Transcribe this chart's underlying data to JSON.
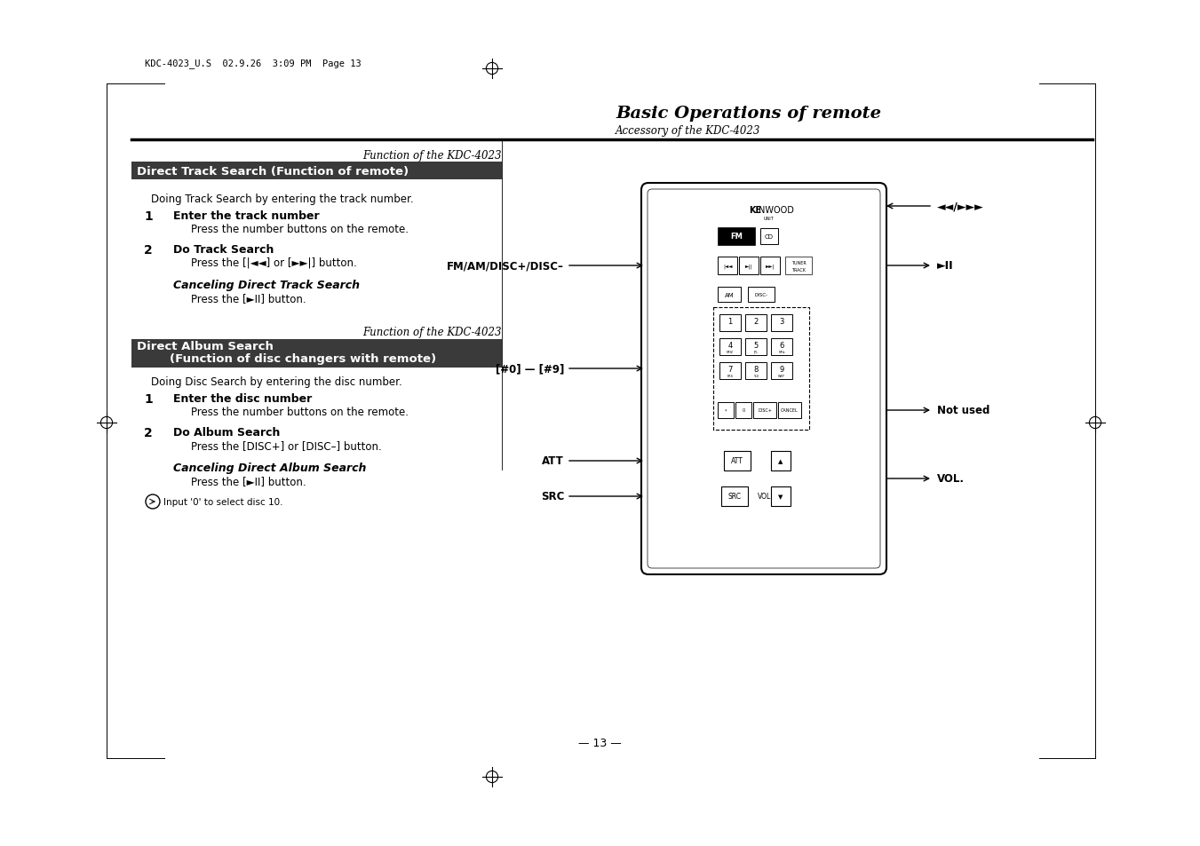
{
  "page_bg": "#ffffff",
  "top_header_text": "KDC-4023_U.S  02.9.26  3:09 PM  Page 13",
  "title_main": "Basic Operations of remote",
  "title_sub": "Accessory of the KDC-4023",
  "section1_label": "Function of the KDC-4023",
  "section1_header": "Direct Track Search (Function of remote)",
  "section1_header_bg": "#3a3a3a",
  "section1_header_fg": "#ffffff",
  "section1_intro": "Doing Track Search by entering the track number.",
  "section1_step1_bold": "Enter the track number",
  "section1_step1_sub": "Press the number buttons on the remote.",
  "section1_step2_bold": "Do Track Search",
  "section1_step2_sub": "Press the [|◄◄] or [►►|] button.",
  "section1_cancel_bold": "Canceling Direct Track Search",
  "section1_cancel_sub": "Press the [►II] button.",
  "section2_label": "Function of the KDC-4023",
  "section2_header_line1": "Direct Album Search",
  "section2_header_line2": "        (Function of disc changers with remote)",
  "section2_header_bg": "#3a3a3a",
  "section2_header_fg": "#ffffff",
  "section2_intro": "Doing Disc Search by entering the disc number.",
  "section2_step1_bold": "Enter the disc number",
  "section2_step1_sub": "Press the number buttons on the remote.",
  "section2_step2_bold": "Do Album Search",
  "section2_step2_sub": "Press the [DISC+] or [DISC–] button.",
  "section2_cancel_bold": "Canceling Direct Album Search",
  "section2_cancel_sub": "Press the [►II] button.",
  "note_text": "Input '0' to select disc 10.",
  "page_num": "— 13 —",
  "remote_label_top": "◄◄/►►►",
  "remote_label_fm": "FM/AM/DISC+/DISC–",
  "remote_label_play": "►II",
  "remote_label_num": "[#0] — [#9]",
  "remote_label_notused": "Not used",
  "remote_label_att": "ATT",
  "remote_label_src": "SRC",
  "remote_label_vol": "VOL."
}
